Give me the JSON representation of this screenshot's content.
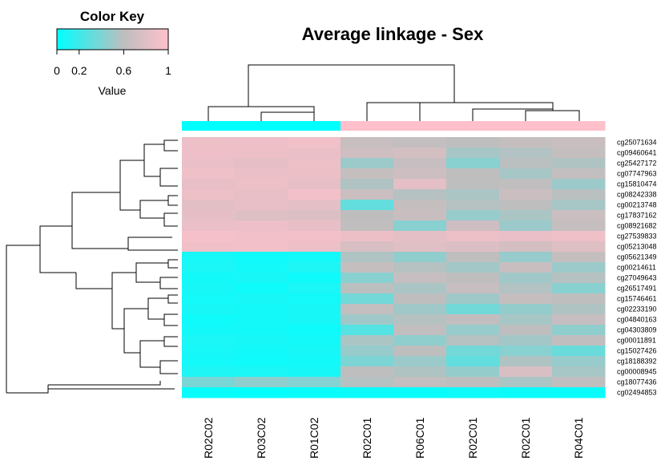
{
  "colors": {
    "low": "#00FFFF",
    "mid": "#BEBEBE",
    "high": "#FFC0CB",
    "male_bar": "#00FFFF",
    "female_bar": "#FFC0CB"
  },
  "chart_data": {
    "type": "heatmap",
    "title": "Average linkage - Sex",
    "color_key": {
      "title": "Color Key",
      "xlabel": "Value",
      "ticks": [
        "0",
        "0.2",
        "0.6",
        "1"
      ],
      "tick_values": [
        0,
        0.2,
        0.6,
        1
      ],
      "range": [
        0,
        1
      ]
    },
    "column_labels": [
      "R02C02",
      "R03C02",
      "R01C02",
      "R02C01",
      "R06C01",
      "R02C01",
      "R02C01",
      "R04C01"
    ],
    "column_sex_colors": [
      "cyan",
      "cyan",
      "cyan",
      "pink",
      "pink",
      "pink",
      "pink",
      "pink"
    ],
    "row_labels": [
      "cg25071634",
      "cg09460641",
      "cg25427172",
      "cg07747963",
      "cg15810474",
      "cg08242338",
      "cg00213748",
      "cg17837162",
      "cg08921682",
      "cg27539833",
      "cg05213048",
      "cg05621349",
      "cg00214611",
      "cg27049643",
      "cg26517491",
      "cg15746461",
      "cg02233190",
      "cg04840163",
      "cg04303809",
      "cg00011891",
      "cg15027426",
      "cg18188392",
      "cg00008945",
      "cg18077436",
      "cg02494853"
    ],
    "values": [
      [
        0.86,
        0.87,
        0.89,
        0.57,
        0.54,
        0.51,
        0.55,
        0.58
      ],
      [
        0.87,
        0.86,
        0.84,
        0.62,
        0.66,
        0.44,
        0.47,
        0.55
      ],
      [
        0.84,
        0.81,
        0.86,
        0.41,
        0.56,
        0.36,
        0.49,
        0.46
      ],
      [
        0.88,
        0.84,
        0.85,
        0.55,
        0.61,
        0.51,
        0.44,
        0.54
      ],
      [
        0.82,
        0.86,
        0.81,
        0.46,
        0.79,
        0.5,
        0.52,
        0.41
      ],
      [
        0.86,
        0.83,
        0.9,
        0.59,
        0.48,
        0.45,
        0.6,
        0.49
      ],
      [
        0.78,
        0.82,
        0.8,
        0.26,
        0.55,
        0.48,
        0.5,
        0.44
      ],
      [
        0.81,
        0.74,
        0.72,
        0.5,
        0.58,
        0.4,
        0.45,
        0.6
      ],
      [
        0.84,
        0.87,
        0.82,
        0.52,
        0.36,
        0.62,
        0.41,
        0.55
      ],
      [
        0.92,
        0.9,
        0.91,
        0.85,
        0.8,
        0.86,
        0.84,
        0.88
      ],
      [
        0.88,
        0.89,
        0.86,
        0.69,
        0.76,
        0.72,
        0.66,
        0.74
      ],
      [
        0.06,
        0.04,
        0.05,
        0.46,
        0.38,
        0.51,
        0.4,
        0.55
      ],
      [
        0.07,
        0.05,
        0.08,
        0.55,
        0.48,
        0.43,
        0.58,
        0.41
      ],
      [
        0.05,
        0.06,
        0.04,
        0.36,
        0.56,
        0.5,
        0.42,
        0.48
      ],
      [
        0.06,
        0.04,
        0.07,
        0.49,
        0.45,
        0.56,
        0.47,
        0.36
      ],
      [
        0.05,
        0.06,
        0.05,
        0.3,
        0.5,
        0.42,
        0.55,
        0.5
      ],
      [
        0.06,
        0.05,
        0.06,
        0.54,
        0.42,
        0.3,
        0.39,
        0.46
      ],
      [
        0.04,
        0.05,
        0.06,
        0.42,
        0.48,
        0.53,
        0.44,
        0.56
      ],
      [
        0.05,
        0.05,
        0.04,
        0.22,
        0.52,
        0.4,
        0.5,
        0.38
      ],
      [
        0.07,
        0.06,
        0.05,
        0.45,
        0.38,
        0.48,
        0.43,
        0.52
      ],
      [
        0.06,
        0.05,
        0.06,
        0.4,
        0.5,
        0.3,
        0.36,
        0.28
      ],
      [
        0.05,
        0.04,
        0.05,
        0.33,
        0.41,
        0.26,
        0.46,
        0.4
      ],
      [
        0.08,
        0.07,
        0.06,
        0.51,
        0.46,
        0.39,
        0.7,
        0.44
      ],
      [
        0.32,
        0.38,
        0.35,
        0.48,
        0.54,
        0.5,
        0.45,
        0.52
      ],
      [
        0.02,
        0.01,
        0.02,
        0.03,
        0.02,
        0.04,
        0.03,
        0.02
      ]
    ],
    "legend": "top-left"
  }
}
